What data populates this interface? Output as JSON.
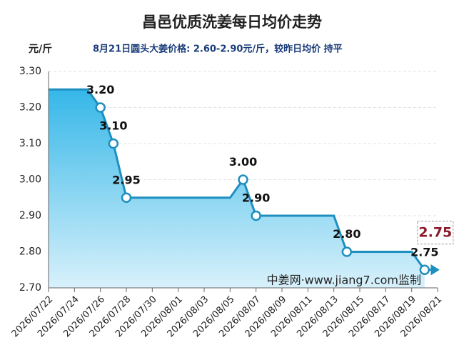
{
  "chart_data": {
    "type": "area",
    "title": "昌邑优质洗姜每日均价走势",
    "unit_label": "元/斤",
    "subtitle": "8月21日圆头大姜价格: 2.60-2.90元/斤，较昨日均价 持平",
    "watermark": "中姜网·www.jiang7.com监制",
    "annotation": "2.75",
    "categories": [
      "2026/07/22",
      null,
      "2026/07/24",
      null,
      "2026/07/26",
      null,
      "2026/07/28",
      null,
      "2026/07/30",
      null,
      "2026/08/01",
      null,
      "2026/08/03",
      null,
      "2026/08/05",
      null,
      "2026/08/07",
      null,
      "2026/08/09",
      null,
      "2026/08/11",
      null,
      "2026/08/13",
      null,
      "2026/08/15",
      null,
      "2026/08/17",
      null,
      "2026/08/19",
      null,
      "2026/08/21"
    ],
    "series": [
      {
        "color": "#1e8fbf",
        "values": [
          3.25,
          3.25,
          3.25,
          3.25,
          3.2,
          3.1,
          2.95,
          2.95,
          2.95,
          2.95,
          2.95,
          2.95,
          2.95,
          2.95,
          2.95,
          3.0,
          2.9,
          2.9,
          2.9,
          2.9,
          2.9,
          2.9,
          2.9,
          2.8,
          2.8,
          2.8,
          2.8,
          2.8,
          2.8,
          2.75,
          null
        ],
        "value_labels": [
          null,
          null,
          null,
          null,
          "3.20",
          "3.10",
          "2.95",
          null,
          null,
          null,
          null,
          null,
          null,
          null,
          null,
          "3.00",
          "2.90",
          null,
          null,
          null,
          null,
          null,
          null,
          "2.80",
          null,
          null,
          null,
          null,
          null,
          "2.75",
          null
        ]
      }
    ],
    "ylim": [
      2.7,
      3.3
    ],
    "yticks": [
      {
        "value": 2.7,
        "label": "2.70"
      },
      {
        "value": 2.8,
        "label": "2.80"
      },
      {
        "value": 2.9,
        "label": "2.90"
      },
      {
        "value": 3.0,
        "label": "3.00"
      },
      {
        "value": 3.1,
        "label": "3.10"
      },
      {
        "value": 3.2,
        "label": "3.20"
      },
      {
        "value": 3.3,
        "label": "3.30"
      }
    ],
    "grid": true
  }
}
